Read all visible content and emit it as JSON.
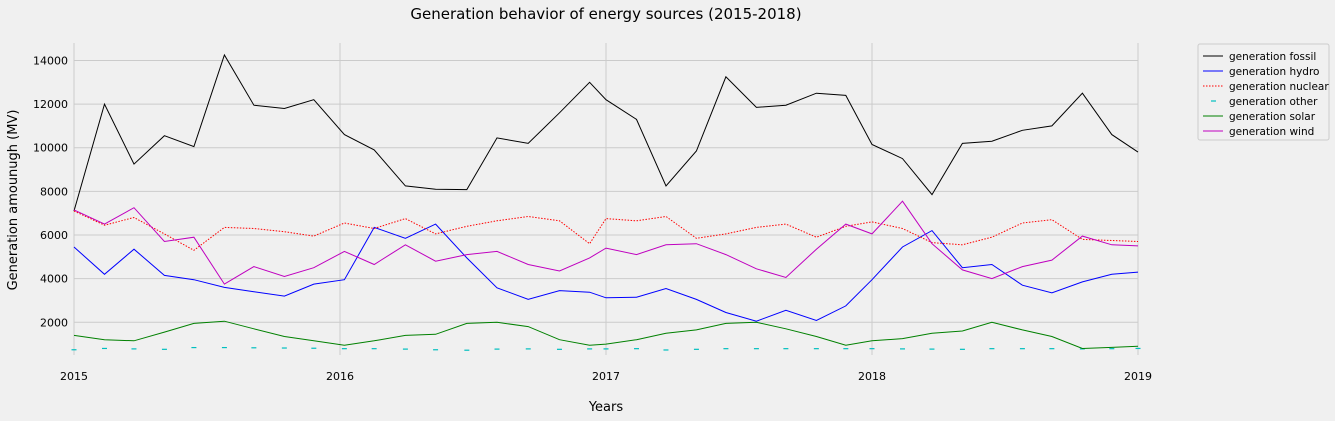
{
  "chart_data": {
    "type": "line",
    "title": "Generation behavior of energy sources (2015-2018)",
    "xlabel": "Years",
    "ylabel": "Generation amounugh (MV)",
    "x_ticks": [
      "2015",
      "2016",
      "2017",
      "2018",
      "2019"
    ],
    "y_ticks": [
      2000,
      4000,
      6000,
      8000,
      10000,
      12000,
      14000
    ],
    "xlim": [
      2015.0,
      2019.0
    ],
    "ylim": [
      500,
      14800
    ],
    "grid": true,
    "legend_position": "top-right, outside plot",
    "x": [
      2015.0,
      2015.1147,
      2015.2254,
      2015.34,
      2015.4508,
      2015.5655,
      2015.6762,
      2015.7908,
      2015.9016,
      2016.0164,
      2016.1284,
      2016.2459,
      2016.3593,
      2016.4768,
      2016.5902,
      2016.7077,
      2016.8251,
      2016.9385,
      2017.0,
      2017.1147,
      2017.2254,
      2017.34,
      2017.4508,
      2017.5655,
      2017.6762,
      2017.7908,
      2017.9016,
      2018.0,
      2018.1147,
      2018.2254,
      2018.34,
      2018.4508,
      2018.5655,
      2018.6762,
      2018.7908,
      2018.9016,
      2019.0
    ],
    "series": [
      {
        "name": "generation fossil",
        "color": "#000000",
        "style": "solid",
        "values": [
          7100,
          12000,
          9250,
          10550,
          10050,
          14250,
          11950,
          11800,
          12200,
          10600,
          9900,
          8250,
          8100,
          8080,
          10450,
          10200,
          11600,
          13000,
          12200,
          11300,
          8250,
          9850,
          13250,
          11850,
          11950,
          12500,
          12400,
          10150,
          9500,
          7850,
          10200,
          10300,
          10800,
          11000,
          12500,
          10600,
          9800
        ]
      },
      {
        "name": "generation hydro",
        "color": "#0000ff",
        "style": "solid",
        "values": [
          5450,
          4200,
          5350,
          4150,
          3950,
          3600,
          3400,
          3200,
          3750,
          3950,
          6350,
          5850,
          6500,
          4950,
          3580,
          3050,
          3450,
          3380,
          3120,
          3150,
          3550,
          3050,
          2450,
          2050,
          2550,
          2080,
          2750,
          3950,
          5450,
          6200,
          4500,
          4650,
          3700,
          3350,
          3850,
          4200,
          4300
        ]
      },
      {
        "name": "generation nuclear",
        "color": "#ff0000",
        "style": "dotted",
        "values": [
          7100,
          6450,
          6800,
          6050,
          5300,
          6350,
          6300,
          6150,
          5950,
          6550,
          6300,
          6750,
          6050,
          6400,
          6650,
          6850,
          6650,
          5600,
          6750,
          6650,
          6850,
          5850,
          6050,
          6350,
          6500,
          5900,
          6400,
          6600,
          6300,
          5650,
          5550,
          5900,
          6550,
          6700,
          5800,
          5750,
          5700
        ]
      },
      {
        "name": "generation other",
        "color": "#00bfbf",
        "style": "dash-markers",
        "values": [
          740,
          800,
          780,
          760,
          840,
          840,
          830,
          820,
          810,
          790,
          790,
          770,
          740,
          720,
          770,
          780,
          760,
          780,
          780,
          790,
          730,
          760,
          790,
          790,
          790,
          790,
          790,
          790,
          780,
          770,
          760,
          790,
          790,
          790,
          780,
          790,
          800
        ]
      },
      {
        "name": "generation solar",
        "color": "#008000",
        "style": "solid",
        "values": [
          1400,
          1200,
          1150,
          1550,
          1950,
          2050,
          1700,
          1350,
          1150,
          950,
          1150,
          1400,
          1450,
          1950,
          2000,
          1800,
          1200,
          950,
          1000,
          1200,
          1500,
          1650,
          1950,
          2000,
          1700,
          1350,
          950,
          1150,
          1250,
          1500,
          1600,
          2000,
          1650,
          1350,
          800,
          850,
          900
        ]
      },
      {
        "name": "generation wind",
        "color": "#bf00bf",
        "style": "solid",
        "values": [
          7150,
          6500,
          7250,
          5700,
          5900,
          3750,
          4550,
          4100,
          4500,
          5250,
          4650,
          5550,
          4800,
          5100,
          5250,
          4650,
          4350,
          4950,
          5400,
          5100,
          5550,
          5600,
          5100,
          4450,
          4050,
          5350,
          6500,
          6050,
          7550,
          5600,
          4400,
          4000,
          4550,
          4850,
          5950,
          5550,
          5500
        ]
      }
    ]
  }
}
